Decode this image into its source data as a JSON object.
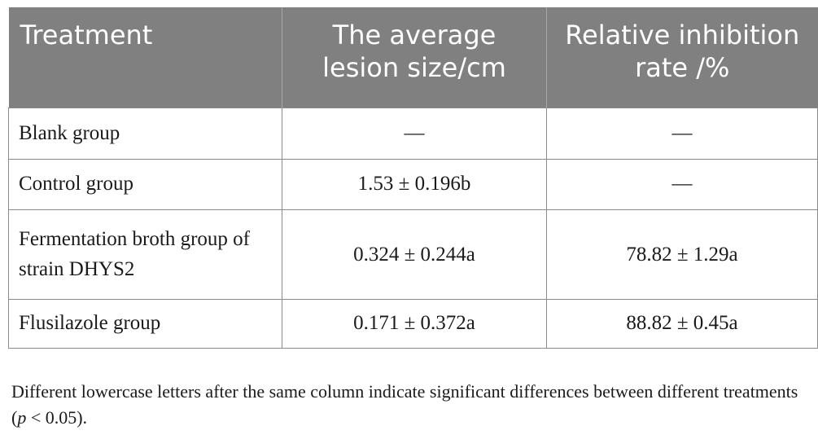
{
  "table": {
    "headers": [
      "Treatment",
      "The average lesion size/cm",
      "Relative inhibition rate /%"
    ],
    "rows": [
      {
        "treatment": "Blank group",
        "lesion": "—",
        "inhibition": "—"
      },
      {
        "treatment": "Control group",
        "lesion": "1.53 ± 0.196b",
        "inhibition": "—"
      },
      {
        "treatment": "Fermentation broth group of strain DHYS2",
        "lesion": "0.324 ± 0.244a",
        "inhibition": "78.82 ± 1.29a"
      },
      {
        "treatment": "Flusilazole group",
        "lesion": "0.171 ± 0.372a",
        "inhibition": "88.82 ± 0.45a"
      }
    ]
  },
  "footnote": {
    "before": "Different lowercase letters after the same column indicate significant differences between different treatments (",
    "italic": "p",
    "after": " < 0.05)."
  },
  "colors": {
    "header_bg": "#808080",
    "header_text": "#ffffff",
    "border": "#8a8a8a"
  }
}
